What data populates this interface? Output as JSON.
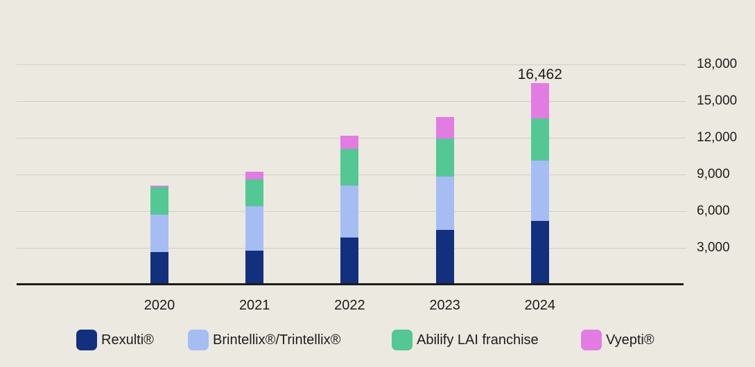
{
  "colors": {
    "background": "#ece9e0",
    "gridline": "#d2cfc6",
    "axis": "#1d1b16",
    "text": "#1c1c1c"
  },
  "chart_data": {
    "type": "bar",
    "stacked": true,
    "title": "",
    "categories": [
      "2020",
      "2021",
      "2022",
      "2023",
      "2024"
    ],
    "series": [
      {
        "name": "Rexulti®",
        "color": "#13307e",
        "values": [
          2670,
          2790,
          3860,
          4480,
          5180
        ]
      },
      {
        "name": "Brintellix®/Trintellix®",
        "color": "#a6bdf4",
        "values": [
          3070,
          3620,
          4260,
          4370,
          4930
        ]
      },
      {
        "name": "Abilify LAI franchise",
        "color": "#53c894",
        "values": [
          2260,
          2170,
          2950,
          3110,
          3470
        ]
      },
      {
        "name": "Vyepti®",
        "color": "#e27ce2",
        "values": [
          70,
          620,
          1090,
          1710,
          2882
        ]
      }
    ],
    "data_labels": [
      {
        "category": "2024",
        "text": "16,462"
      }
    ],
    "y_ticks": [
      3000,
      6000,
      9000,
      12000,
      15000,
      18000
    ],
    "y_tick_labels": [
      "3,000",
      "6,000",
      "9,000",
      "12,000",
      "15,000",
      "18,000"
    ],
    "ylim": [
      0,
      18000
    ],
    "grid": true,
    "legend_position": "bottom",
    "legend_labels": [
      "Rexulti®",
      "Brintellix®/Trintellix®",
      "Abilify LAI franchise",
      "Vyepti®"
    ]
  }
}
